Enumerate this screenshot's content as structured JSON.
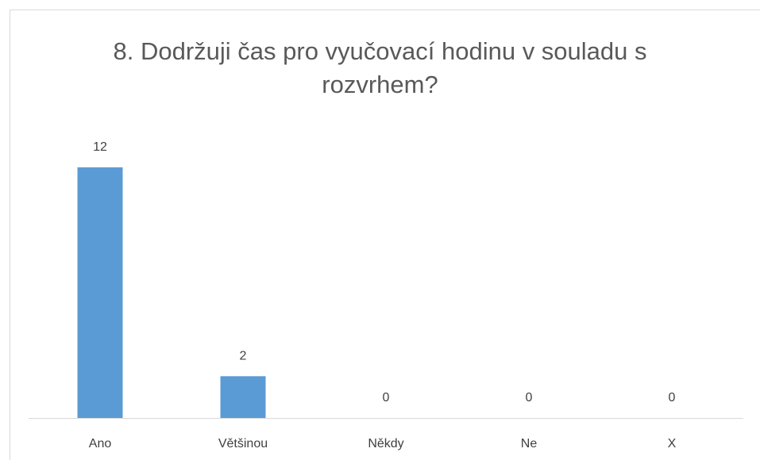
{
  "chart_data": {
    "type": "bar",
    "title": "8. Dodržuji čas pro vyučovací hodinu v souladu s rozvrhem?",
    "categories": [
      "Ano",
      "Většinou",
      "Někdy",
      "Ne",
      "X"
    ],
    "values": [
      12,
      2,
      0,
      0,
      0
    ],
    "color": "#5b9bd5"
  }
}
